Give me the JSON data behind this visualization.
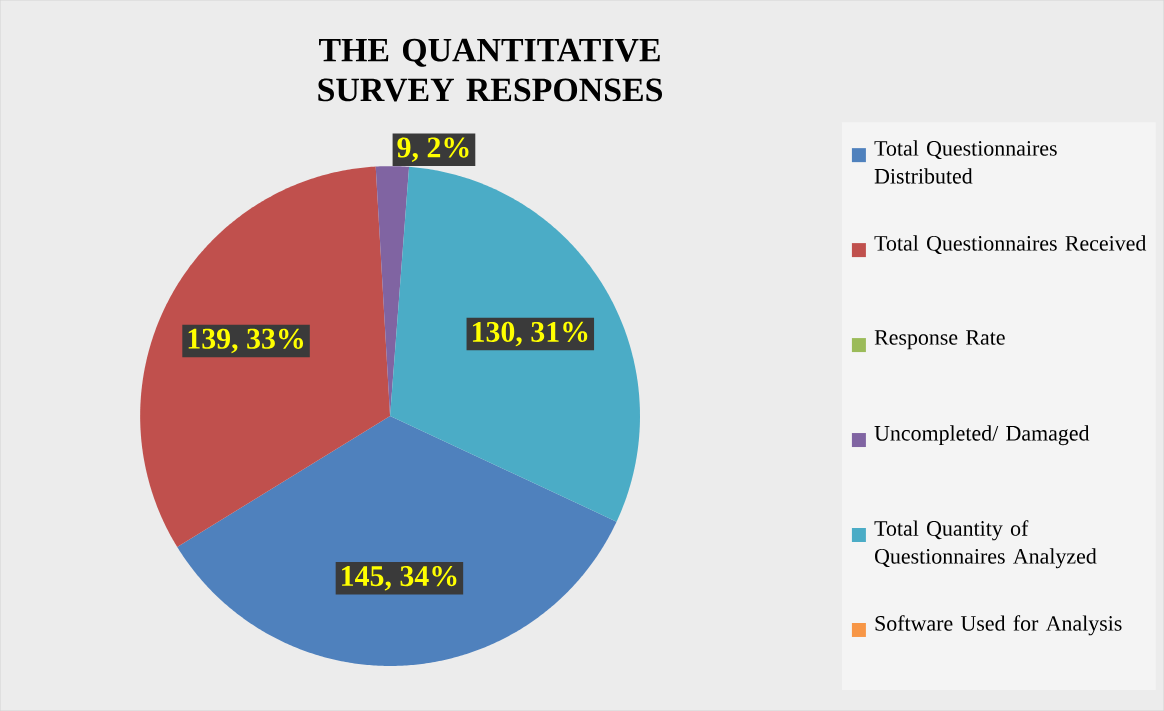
{
  "chart_data": {
    "type": "pie",
    "title": "THE QUANTITATIVE SURVEY RESPONSES",
    "categories": [
      "Total Questionnaires Distributed",
      "Total Questionnaires Received",
      "Response Rate",
      "Uncompleted/ Damaged",
      "Total Quantity of Questionnaires Analyzed",
      "Software Used for Analysis"
    ],
    "values": [
      145,
      139,
      null,
      9,
      130,
      null
    ],
    "colors": [
      "#4f81bd",
      "#c0504d",
      "#9bbb59",
      "#8064a2",
      "#4bacc6",
      "#f79646"
    ],
    "value_labels": [
      "145, 34%",
      "139, 33%",
      null,
      "9, 2%",
      "130, 31%",
      null
    ],
    "legend": "right"
  }
}
